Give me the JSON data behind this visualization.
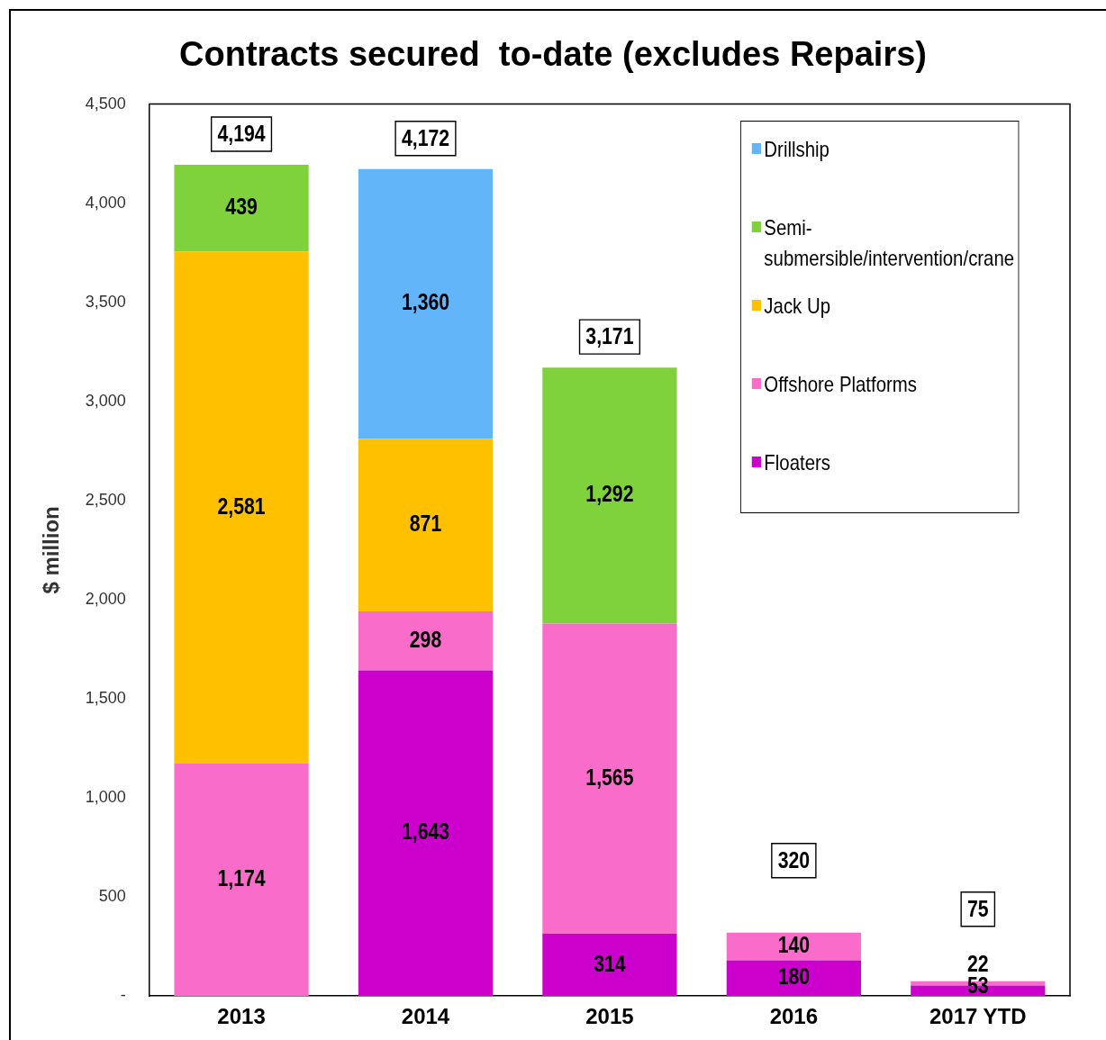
{
  "chart_data": {
    "type": "bar",
    "title": "Contracts secured  to-date (excludes Repairs)",
    "ylabel": "$ million",
    "categories": [
      "2013",
      "2014",
      "2015",
      "2016",
      "2017 YTD"
    ],
    "stacked": true,
    "series": [
      {
        "name": "Floaters",
        "color": "#cc00cc",
        "values": [
          null,
          1643,
          314,
          180,
          53
        ],
        "value_labels": [
          null,
          "1,643",
          "314",
          "180",
          "53"
        ]
      },
      {
        "name": "Offshore Platforms",
        "color": "#fa6cca",
        "values": [
          1174,
          298,
          1565,
          140,
          22
        ],
        "value_labels": [
          "1,174",
          "298",
          "1,565",
          "140",
          "22"
        ]
      },
      {
        "name": "Jack Up",
        "color": "#ffc000",
        "values": [
          2581,
          871,
          null,
          null,
          null
        ],
        "value_labels": [
          "2,581",
          "871",
          null,
          null,
          null
        ]
      },
      {
        "name": "Semi-submersible/intervention/crane",
        "color": "#80d23c",
        "values": [
          439,
          null,
          1292,
          null,
          null
        ],
        "value_labels": [
          "439",
          null,
          "1,292",
          null,
          null
        ]
      },
      {
        "name": "Drillship",
        "color": "#63b5fa",
        "values": [
          null,
          1360,
          null,
          null,
          null
        ],
        "value_labels": [
          null,
          "1,360",
          null,
          null,
          null
        ]
      }
    ],
    "totals": [
      "4,194",
      "4,172",
      "3,171",
      "320",
      "75"
    ],
    "ylim": [
      0,
      4500
    ],
    "yticks": [
      {
        "value": 0,
        "label": "-"
      },
      500,
      {
        "value": 1000,
        "label": "1,000"
      },
      {
        "value": 1500,
        "label": "1,500"
      },
      {
        "value": 2000,
        "label": "2,000"
      },
      {
        "value": 2500,
        "label": "2,500"
      },
      {
        "value": 3000,
        "label": "3,000"
      },
      {
        "value": 3500,
        "label": "3,500"
      },
      {
        "value": 4000,
        "label": "4,000"
      },
      {
        "value": 4500,
        "label": "4,500"
      }
    ],
    "grid": false,
    "legend": "top right"
  }
}
